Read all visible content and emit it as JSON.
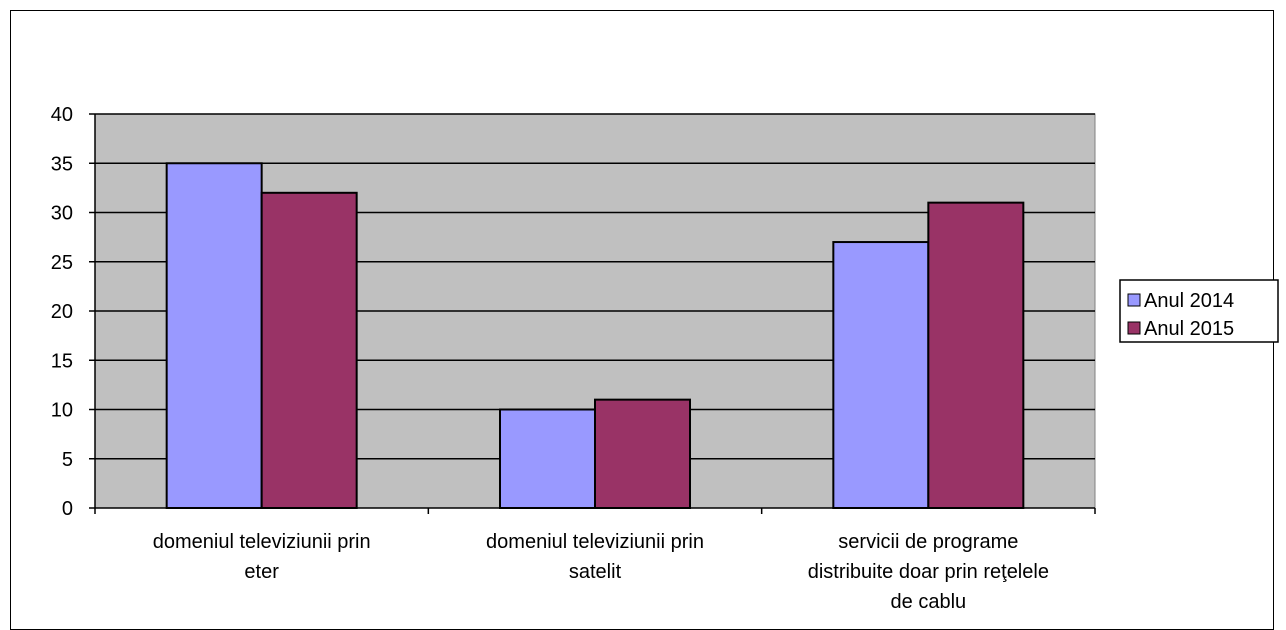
{
  "chart_data": {
    "type": "bar",
    "categories": [
      [
        "domeniul televiziunii prin",
        "eter"
      ],
      [
        "domeniul televiziunii prin",
        "satelit"
      ],
      [
        "servicii de programe",
        "distribuite doar prin reţelele",
        "de cablu"
      ]
    ],
    "series": [
      {
        "name": "Anul 2014",
        "values": [
          35,
          10,
          27
        ],
        "color": "#9999ff"
      },
      {
        "name": "Anul 2015",
        "values": [
          32,
          11,
          31
        ],
        "color": "#993366"
      }
    ],
    "yticks": [
      "0",
      "5",
      "10",
      "15",
      "20",
      "25",
      "30",
      "35",
      "40"
    ],
    "ylim": [
      0,
      40
    ],
    "ystep": 5,
    "grid": true,
    "plot_background": "#c0c0c0",
    "legend_position": "right"
  }
}
